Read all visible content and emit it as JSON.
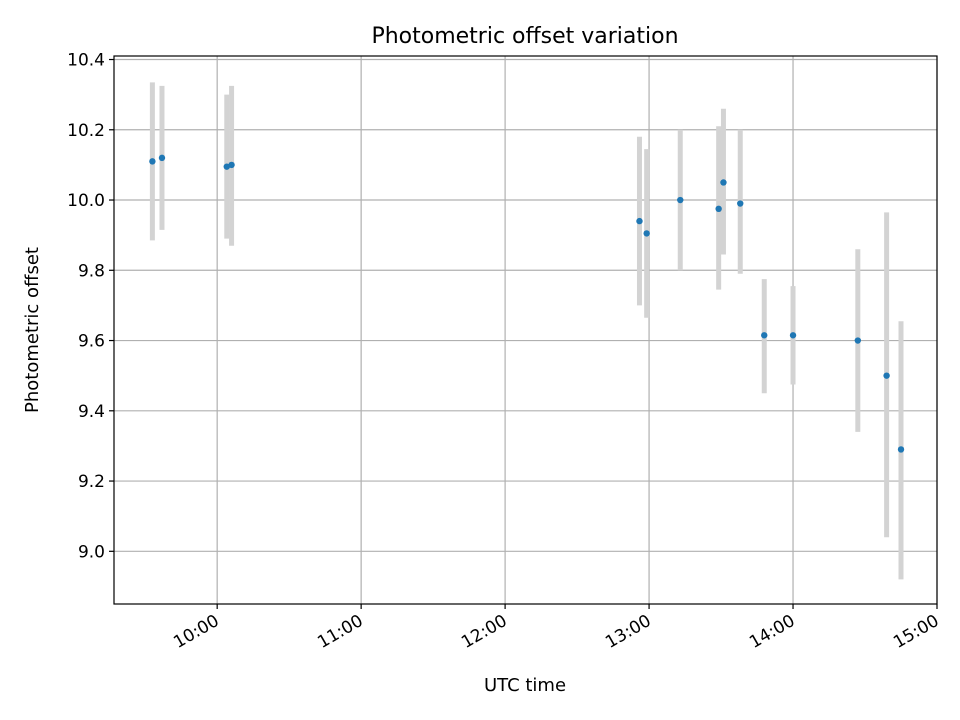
{
  "chart_data": {
    "type": "scatter",
    "title": "Photometric offset variation",
    "xlabel": "UTC time",
    "ylabel": "Photometric offset",
    "x_axis_kind": "time",
    "xlim": [
      "09:17",
      "15:00"
    ],
    "ylim": [
      8.85,
      10.41
    ],
    "x_ticks": [
      "10:00",
      "11:00",
      "12:00",
      "13:00",
      "14:00",
      "15:00"
    ],
    "y_ticks": [
      9.0,
      9.2,
      9.4,
      9.6,
      9.8,
      10.0,
      10.2,
      10.4
    ],
    "y_tick_labels": [
      "9.0",
      "9.2",
      "9.4",
      "9.6",
      "9.8",
      "10.0",
      "10.2",
      "10.4"
    ],
    "grid": true,
    "colors": {
      "point": "#1f77b4",
      "errorbar": "#d3d3d3",
      "grid": "#b0b0b0"
    },
    "series": [
      {
        "points": [
          {
            "x": "09:33",
            "y": 10.11,
            "ylow": 9.885,
            "yhigh": 10.335
          },
          {
            "x": "09:37",
            "y": 10.12,
            "ylow": 9.915,
            "yhigh": 10.325
          },
          {
            "x": "10:04",
            "y": 10.095,
            "ylow": 9.89,
            "yhigh": 10.3
          },
          {
            "x": "10:06",
            "y": 10.1,
            "ylow": 9.87,
            "yhigh": 10.325
          },
          {
            "x": "12:56",
            "y": 9.94,
            "ylow": 9.7,
            "yhigh": 10.18
          },
          {
            "x": "12:59",
            "y": 9.905,
            "ylow": 9.665,
            "yhigh": 10.145
          },
          {
            "x": "13:13",
            "y": 10.0,
            "ylow": 9.8,
            "yhigh": 10.2
          },
          {
            "x": "13:29",
            "y": 9.975,
            "ylow": 9.745,
            "yhigh": 10.21
          },
          {
            "x": "13:31",
            "y": 10.05,
            "ylow": 9.845,
            "yhigh": 10.26
          },
          {
            "x": "13:38",
            "y": 9.99,
            "ylow": 9.79,
            "yhigh": 10.2
          },
          {
            "x": "13:48",
            "y": 9.615,
            "ylow": 9.45,
            "yhigh": 9.775
          },
          {
            "x": "14:00",
            "y": 9.615,
            "ylow": 9.475,
            "yhigh": 9.755
          },
          {
            "x": "14:27",
            "y": 9.6,
            "ylow": 9.34,
            "yhigh": 9.86
          },
          {
            "x": "14:39",
            "y": 9.5,
            "ylow": 9.04,
            "yhigh": 9.965
          },
          {
            "x": "14:45",
            "y": 9.29,
            "ylow": 8.92,
            "yhigh": 9.655
          }
        ]
      }
    ]
  }
}
